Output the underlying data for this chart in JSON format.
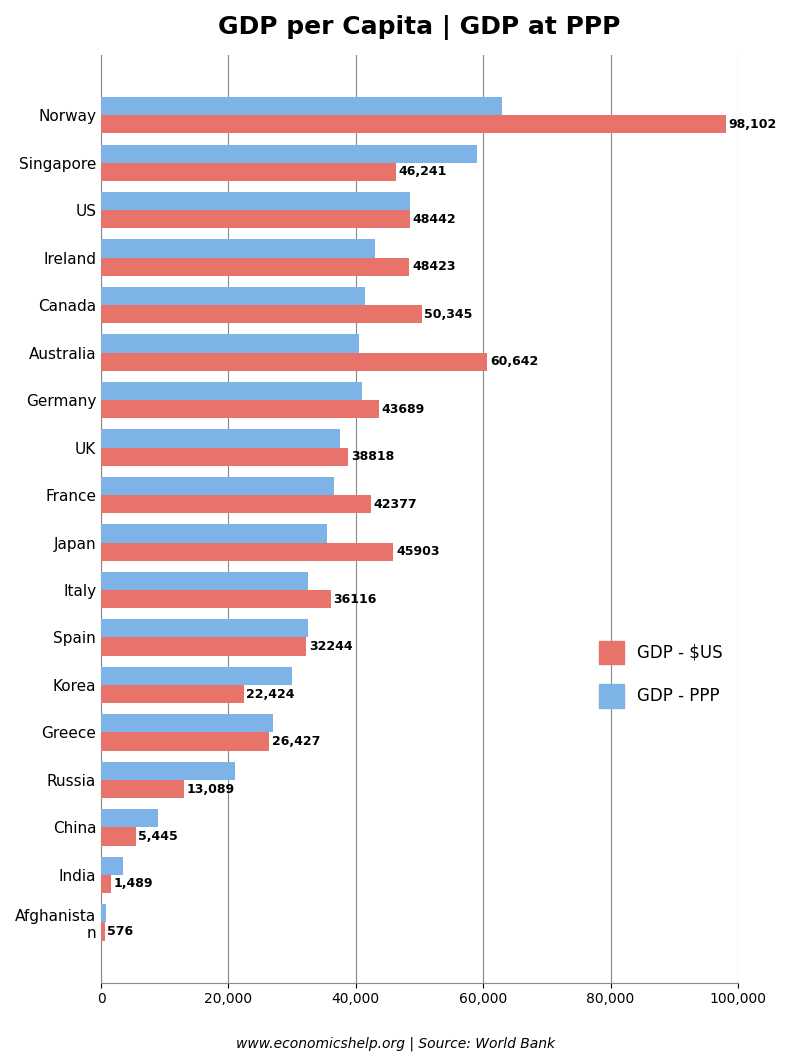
{
  "title": "GDP per Capita | GDP at PPP",
  "country_labels": [
    "Norway",
    "Singapore",
    "US",
    "Ireland",
    "Canada",
    "Australia",
    "Germany",
    "UK",
    "France",
    "Japan",
    "Italy",
    "Spain",
    "Korea",
    "Greece",
    "Russia",
    "China",
    "India",
    "Afghanista\nn"
  ],
  "gdp_usd": [
    98102,
    46241,
    48442,
    48423,
    50345,
    60642,
    43689,
    38818,
    42377,
    45903,
    36116,
    32244,
    22424,
    26427,
    13089,
    5445,
    1489,
    576
  ],
  "gdp_usd_labels": [
    "98,102",
    "46,241",
    "48442",
    "48423",
    "50,345",
    "60,642",
    "43689",
    "38818",
    "42377",
    "45903",
    "36116",
    "32244",
    "22,424",
    "26,427",
    "13,089",
    "5,445",
    "1,489",
    "576"
  ],
  "gdp_ppp": [
    63000,
    59000,
    48500,
    43000,
    41500,
    40500,
    41000,
    37500,
    36500,
    35500,
    32500,
    32500,
    30000,
    27000,
    21000,
    9000,
    3500,
    800
  ],
  "bar_color_usd": "#E8736B",
  "bar_color_ppp": "#7EB3E8",
  "xlim": [
    0,
    100000
  ],
  "xticks": [
    0,
    20000,
    40000,
    60000,
    80000,
    100000
  ],
  "xticklabels": [
    "0",
    "20,000",
    "40,000",
    "60,000",
    "80,000",
    "100,000"
  ],
  "footer": "www.economicshelp.org | Source: World Bank",
  "legend_labels": [
    "GDP - $US",
    "GDP - PPP"
  ],
  "background_color": "#FFFFFF",
  "grid_color": "#888888"
}
